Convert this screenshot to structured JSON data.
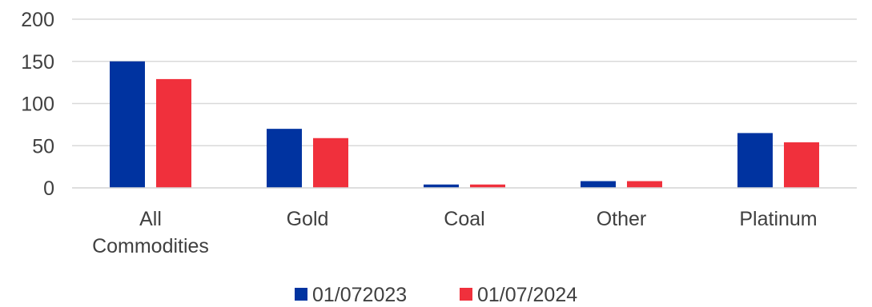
{
  "chart_data": {
    "type": "bar",
    "categories": [
      [
        "All",
        "Commodities"
      ],
      [
        "Gold"
      ],
      [
        "Coal"
      ],
      [
        "Other"
      ],
      [
        "Platinum"
      ]
    ],
    "series": [
      {
        "name": "01/072023",
        "color": "#0033a0",
        "values": [
          150,
          70,
          4,
          8,
          65
        ]
      },
      {
        "name": "01/07/2024",
        "color": "#f0303c",
        "values": [
          129,
          59,
          4,
          8,
          54
        ]
      }
    ],
    "yticks": [
      0,
      50,
      100,
      150,
      200
    ],
    "ylim": [
      0,
      200
    ],
    "grid": true,
    "legend_position": "bottom"
  }
}
